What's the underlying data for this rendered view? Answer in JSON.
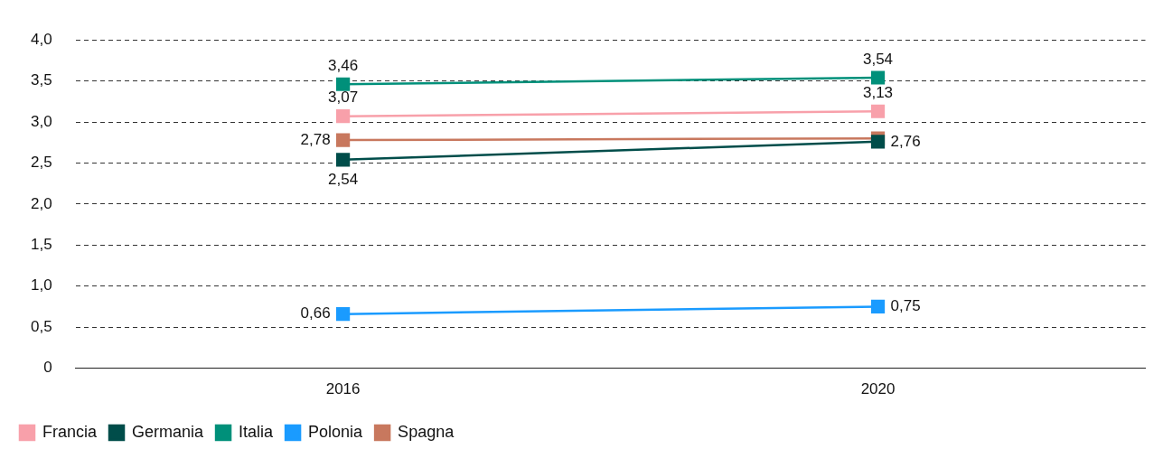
{
  "chart_data": {
    "type": "line",
    "categories": [
      "2016",
      "2020"
    ],
    "series": [
      {
        "name": "Francia",
        "color": "#f8a0aa",
        "values": [
          3.07,
          3.13
        ],
        "value_labels": [
          "3,07",
          "3,13"
        ]
      },
      {
        "name": "Germania",
        "color": "#004d4a",
        "values": [
          2.54,
          2.76
        ],
        "value_labels": [
          "2,54",
          "2,76"
        ]
      },
      {
        "name": "Italia",
        "color": "#00907a",
        "values": [
          3.46,
          3.54
        ],
        "value_labels": [
          "3,46",
          "3,54"
        ]
      },
      {
        "name": "Polonia",
        "color": "#1a9bff",
        "values": [
          0.66,
          0.75
        ],
        "value_labels": [
          "0,66",
          "0,75"
        ]
      },
      {
        "name": "Spagna",
        "color": "#c8785e",
        "values": [
          2.78,
          2.8
        ],
        "value_labels": [
          "2,78",
          null
        ]
      }
    ],
    "ylim": [
      0,
      4
    ],
    "yticks": [
      0,
      {
        "value": 0.5,
        "label": "0,5"
      },
      {
        "value": 1,
        "label": "1,0"
      },
      {
        "value": 1.5,
        "label": "1,5"
      },
      {
        "value": 2,
        "label": "2,0"
      },
      {
        "value": 2.5,
        "label": "2,5"
      },
      {
        "value": 3,
        "label": "3,0"
      },
      {
        "value": 3.5,
        "label": "3,5"
      },
      {
        "value": 4,
        "label": "4,0"
      }
    ],
    "grid": "y",
    "legend": "bottom left",
    "marker": "square",
    "line_style": "solid"
  }
}
